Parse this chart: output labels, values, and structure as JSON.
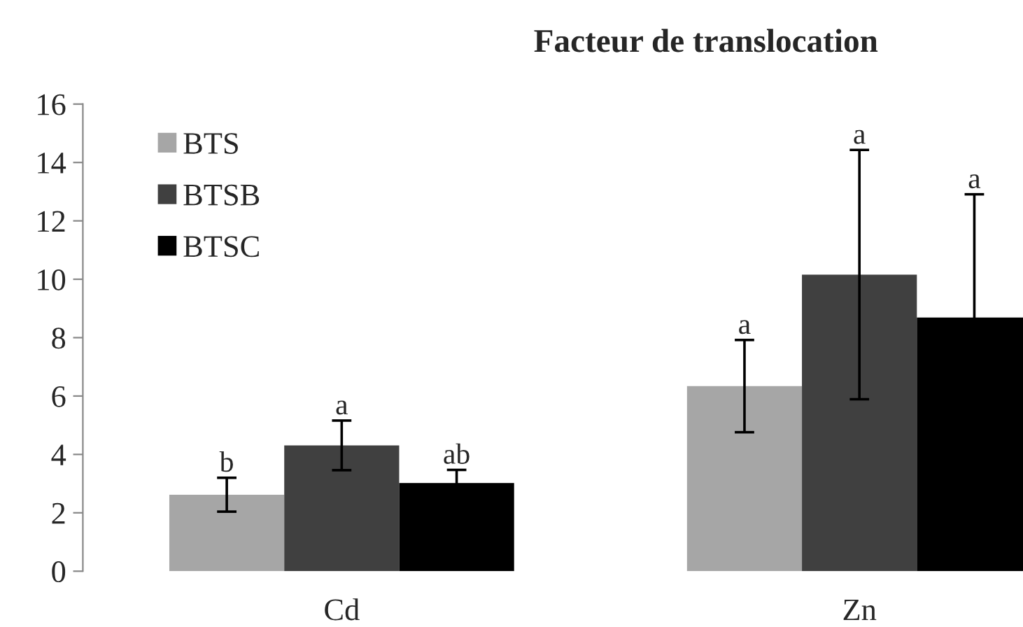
{
  "chart_data": {
    "type": "bar",
    "title": "Facteur de translocation",
    "categories": [
      "Cd",
      "Zn"
    ],
    "series": [
      {
        "name": "BTS",
        "color": "#a6a6a6",
        "values": [
          2.62,
          6.34
        ],
        "errors": [
          0.58,
          1.58
        ]
      },
      {
        "name": "BTSB",
        "color": "#404040",
        "values": [
          4.31,
          10.16
        ],
        "errors": [
          0.85,
          4.27
        ]
      },
      {
        "name": "BTSC",
        "color": "#000000",
        "values": [
          3.02,
          8.69
        ],
        "errors": [
          0.45,
          4.22
        ]
      }
    ],
    "ylim": [
      0,
      16
    ],
    "yticks": [
      0,
      2,
      4,
      6,
      8,
      10,
      12,
      14,
      16
    ],
    "grid": false,
    "legend": "top left",
    "annotations": [
      "b",
      "a",
      "ab",
      "a",
      "a",
      "a"
    ]
  }
}
